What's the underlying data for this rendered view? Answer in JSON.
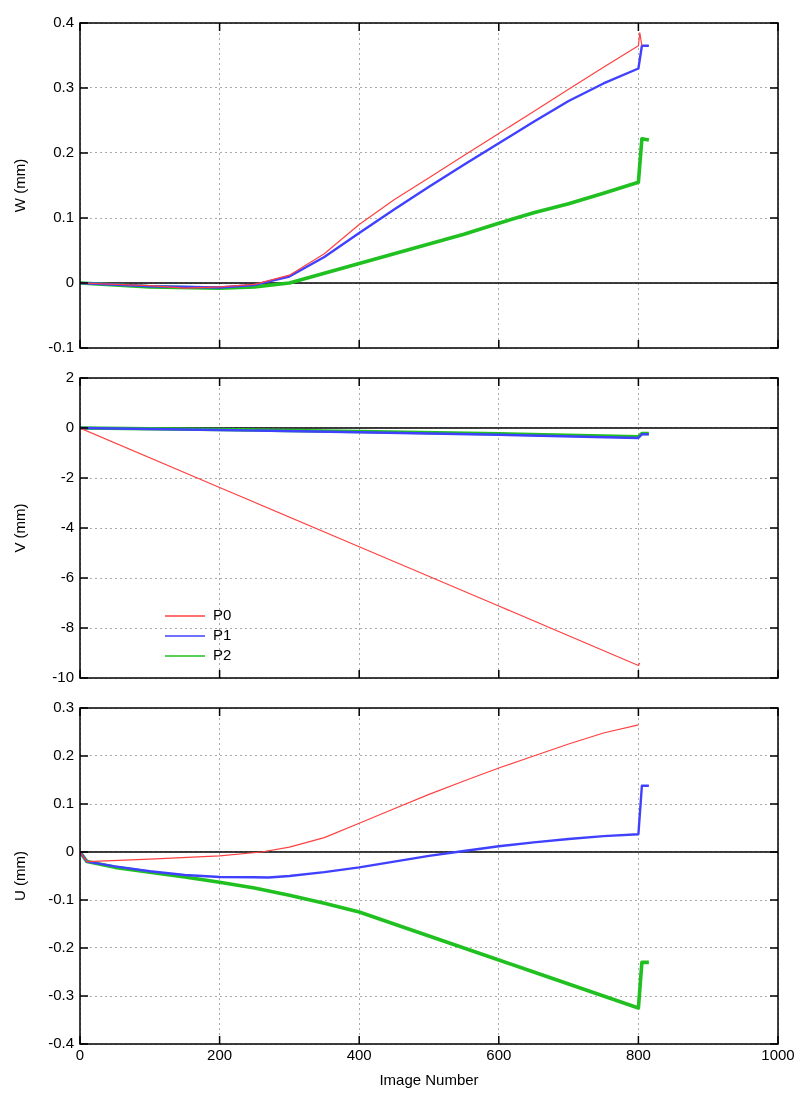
{
  "chart_data": [
    {
      "type": "line",
      "ylabel": "W (mm)",
      "xlim": [
        0,
        1000
      ],
      "xticks": [
        0,
        200,
        400,
        600,
        800,
        1000
      ],
      "ylim": [
        -0.1,
        0.4
      ],
      "yticks": [
        -0.1,
        0.0,
        0.1,
        0.2,
        0.3,
        0.4
      ],
      "grid": true,
      "tick_labels": "y",
      "marker": "none",
      "ref_lines": [
        {
          "axis": "y",
          "value": 0,
          "color": "#000000",
          "line_style": "solid"
        }
      ],
      "series": [
        {
          "color": "#ff4040",
          "x": [
            0,
            100,
            150,
            200,
            250,
            300,
            350,
            400,
            450,
            500,
            550,
            600,
            650,
            700,
            750,
            800,
            802,
            805
          ],
          "values": [
            0.0,
            -0.004,
            -0.008,
            -0.006,
            -0.002,
            0.012,
            0.045,
            0.09,
            0.128,
            0.162,
            0.196,
            0.23,
            0.264,
            0.298,
            0.332,
            0.365,
            0.385,
            0.365
          ]
        },
        {
          "color": "#4040ff",
          "x": [
            0,
            100,
            200,
            250,
            300,
            350,
            400,
            450,
            500,
            550,
            600,
            650,
            700,
            750,
            800,
            805,
            815
          ],
          "values": [
            0.0,
            -0.005,
            -0.007,
            -0.003,
            0.01,
            0.04,
            0.077,
            0.113,
            0.148,
            0.182,
            0.215,
            0.248,
            0.28,
            0.307,
            0.33,
            0.365,
            0.365
          ]
        },
        {
          "color": "#20c020",
          "x": [
            0,
            100,
            200,
            250,
            300,
            350,
            400,
            450,
            500,
            550,
            600,
            650,
            700,
            750,
            800,
            805,
            815
          ],
          "values": [
            0.0,
            -0.006,
            -0.008,
            -0.006,
            0.0,
            0.015,
            0.03,
            0.045,
            0.06,
            0.075,
            0.092,
            0.108,
            0.122,
            0.138,
            0.155,
            0.222,
            0.22
          ]
        }
      ]
    },
    {
      "type": "line",
      "ylabel": "V (mm)",
      "xlim": [
        0,
        1000
      ],
      "xticks": [
        0,
        200,
        400,
        600,
        800,
        1000
      ],
      "ylim": [
        -10,
        2
      ],
      "yticks": [
        -10,
        -8,
        -6,
        -4,
        -2,
        0,
        2
      ],
      "grid": true,
      "tick_labels": "y",
      "marker": "none",
      "legend": "bottom left",
      "ref_lines": [
        {
          "axis": "y",
          "value": 0,
          "color": "#000000",
          "line_style": "solid"
        }
      ],
      "series": [
        {
          "name": "P0",
          "color": "#ff4040",
          "x": [
            0,
            200,
            400,
            600,
            800,
            802
          ],
          "values": [
            0.0,
            -2.38,
            -4.75,
            -7.12,
            -9.5,
            -9.4
          ]
        },
        {
          "name": "P1",
          "color": "#4040ff",
          "x": [
            0,
            200,
            400,
            600,
            800,
            805,
            815
          ],
          "values": [
            0.0,
            -0.08,
            -0.17,
            -0.27,
            -0.4,
            -0.25,
            -0.25
          ]
        },
        {
          "name": "P2",
          "color": "#20c020",
          "x": [
            0,
            200,
            400,
            600,
            800,
            805,
            815
          ],
          "values": [
            0.0,
            -0.06,
            -0.14,
            -0.23,
            -0.35,
            -0.22,
            -0.22
          ]
        }
      ]
    },
    {
      "type": "line",
      "ylabel": "U (mm)",
      "xlabel": "Image Number",
      "xlim": [
        0,
        1000
      ],
      "xticks": [
        0,
        200,
        400,
        600,
        800,
        1000
      ],
      "ylim": [
        -0.4,
        0.3
      ],
      "yticks": [
        -0.4,
        -0.3,
        -0.2,
        -0.1,
        0.0,
        0.1,
        0.2,
        0.3
      ],
      "grid": true,
      "marker": "none",
      "ref_lines": [
        {
          "axis": "y",
          "value": 0,
          "color": "#000000",
          "line_style": "solid"
        }
      ],
      "series": [
        {
          "color": "#ff4040",
          "x": [
            0,
            10,
            100,
            200,
            260,
            300,
            350,
            400,
            450,
            500,
            550,
            600,
            650,
            700,
            750,
            800
          ],
          "values": [
            0.0,
            -0.02,
            -0.015,
            -0.008,
            0.0,
            0.01,
            0.03,
            0.06,
            0.09,
            0.12,
            0.148,
            0.175,
            0.2,
            0.225,
            0.248,
            0.265
          ]
        },
        {
          "color": "#4040ff",
          "x": [
            0,
            10,
            50,
            100,
            150,
            200,
            270,
            300,
            350,
            400,
            450,
            500,
            550,
            600,
            650,
            700,
            750,
            800,
            805,
            815
          ],
          "values": [
            0.0,
            -0.02,
            -0.03,
            -0.04,
            -0.048,
            -0.052,
            -0.053,
            -0.05,
            -0.042,
            -0.032,
            -0.02,
            -0.008,
            0.002,
            0.012,
            0.02,
            0.027,
            0.033,
            0.037,
            0.138,
            0.138
          ]
        },
        {
          "color": "#20c020",
          "x": [
            0,
            10,
            50,
            100,
            150,
            200,
            250,
            300,
            350,
            400,
            450,
            500,
            550,
            600,
            650,
            700,
            750,
            800,
            805,
            815
          ],
          "values": [
            0.0,
            -0.02,
            -0.032,
            -0.042,
            -0.052,
            -0.063,
            -0.075,
            -0.09,
            -0.107,
            -0.125,
            -0.15,
            -0.175,
            -0.2,
            -0.225,
            -0.25,
            -0.275,
            -0.3,
            -0.325,
            -0.23,
            -0.23
          ]
        }
      ]
    }
  ]
}
